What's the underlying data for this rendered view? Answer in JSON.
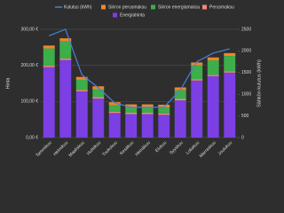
{
  "chart_data": {
    "type": "bar",
    "stacked": true,
    "grid": true,
    "y_label": "Hinta",
    "y2_label": "Sähkön kulutus (kWh)",
    "categories": [
      "Tammikuu",
      "Helmikuu",
      "Maaliskuu",
      "Huhtikuu",
      "Toukokuu",
      "Kesäkuu",
      "Heinäkuu",
      "Elokuu",
      "Syyskuu",
      "Lokakuu",
      "Marraskuu",
      "Joulukuu"
    ],
    "series": [
      {
        "name": "Kulutus (kWh)",
        "type": "line",
        "axis": "y2",
        "color": "#4a7fd8",
        "values": [
          2350,
          2500,
          1450,
          1150,
          800,
          700,
          700,
          700,
          1100,
          1750,
          1950,
          2050
        ]
      },
      {
        "name": "Siirron perusmaksu",
        "color": "#f0862a",
        "values": [
          8,
          8,
          8,
          8,
          8,
          8,
          8,
          8,
          8,
          8,
          8,
          8
        ]
      },
      {
        "name": "Siirron energiamaksu",
        "color": "#3cae4a",
        "values": [
          48,
          48,
          28,
          22,
          18,
          15,
          15,
          16,
          24,
          38,
          40,
          42
        ]
      },
      {
        "name": "Perusmaksu",
        "color": "#f08a7a",
        "values": [
          4,
          4,
          4,
          4,
          4,
          4,
          4,
          4,
          4,
          4,
          4,
          4
        ]
      },
      {
        "name": "Energiahinta",
        "color": "#7b3fe4",
        "values": [
          195,
          215,
          128,
          108,
          68,
          65,
          65,
          63,
          103,
          158,
          170,
          180
        ]
      }
    ],
    "ylim": [
      0,
      300
    ],
    "yticks": [
      {
        "value": 0,
        "label": "0,00 €"
      },
      {
        "value": 100,
        "label": "100,00 €"
      },
      {
        "value": 200,
        "label": "200,00 €"
      },
      {
        "value": 300,
        "label": "300,00 €"
      }
    ],
    "y2lim": [
      0,
      2500
    ],
    "y2ticks": [
      0,
      500,
      1000,
      1500,
      2000,
      2500
    ]
  }
}
